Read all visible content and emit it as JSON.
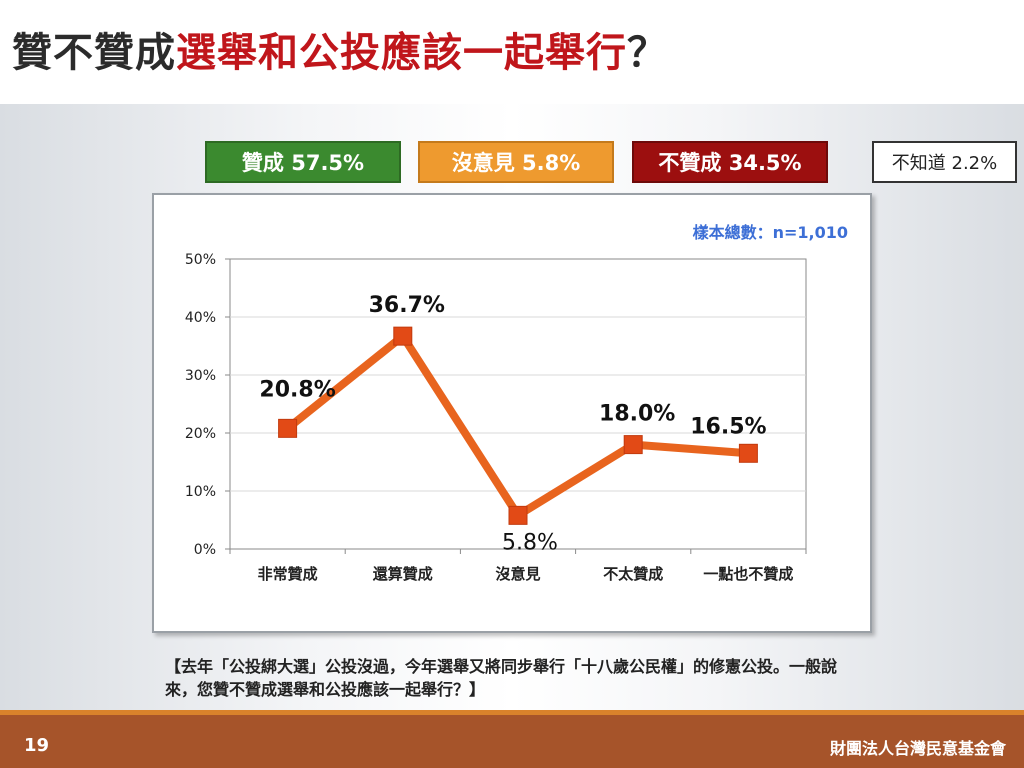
{
  "header": {
    "title_part1": "贊不贊成",
    "title_part2": "選舉和公投應該一起舉行",
    "title_part3": "？"
  },
  "legend": {
    "support": "贊成 57.5%",
    "neutral": "沒意見 5.8%",
    "oppose": "不贊成 34.5%",
    "unknown": "不知道 2.2%"
  },
  "sample_size": "樣本總數：n=1,010",
  "question": "【去年「公投綁大選」公投沒過，今年選舉又將同步舉行「十八歲公民權」的修憲公投。一般說來，您贊不贊成選舉和公投應該一起舉行？】",
  "footer": {
    "page_number": "19",
    "organization": "財團法人台灣民意基金會"
  },
  "colors": {
    "line": "#e8641e",
    "support": "#3b8a2f",
    "neutral": "#ee9a2f",
    "oppose": "#9c0f0f",
    "title_highlight": "#c0161b",
    "sample_text": "#3d6fd6",
    "footer": "#a6542a"
  },
  "chart_data": {
    "type": "line",
    "categories": [
      "非常贊成",
      "還算贊成",
      "沒意見",
      "不太贊成",
      "一點也不贊成"
    ],
    "values": [
      20.8,
      36.7,
      5.8,
      18.0,
      16.5
    ],
    "data_labels": [
      "20.8%",
      "36.7%",
      "5.8%",
      "18.0%",
      "16.5%"
    ],
    "y_ticks": [
      "0%",
      "10%",
      "20%",
      "30%",
      "40%",
      "50%"
    ],
    "ylim": [
      0,
      50
    ],
    "grid": true,
    "legend_placement": "top"
  }
}
